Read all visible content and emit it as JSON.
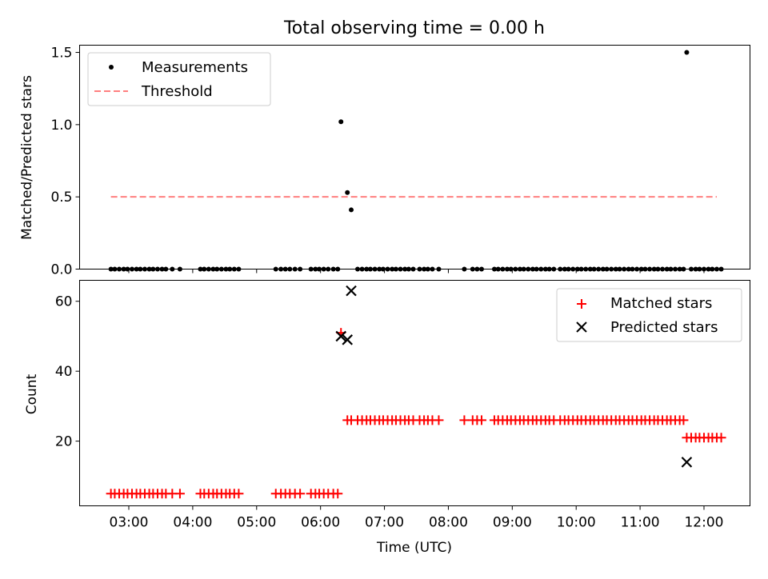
{
  "chart_data": {
    "title": "Total observing time = 0.00 h",
    "xlabel": "Time (UTC)",
    "x_ticks": [
      "03:00",
      "04:00",
      "05:00",
      "06:00",
      "07:00",
      "08:00",
      "09:00",
      "10:00",
      "11:00",
      "12:00"
    ],
    "x_tick_hours": [
      3,
      4,
      5,
      6,
      7,
      8,
      9,
      10,
      11,
      12
    ],
    "xlim": [
      2.23,
      12.72
    ],
    "panels": [
      {
        "type": "scatter",
        "ylabel": "Matched/Predicted stars",
        "ylim": [
          0,
          1.55
        ],
        "y_ticks": [
          "0.0",
          "0.5",
          "1.0",
          "1.5"
        ],
        "y_tick_values": [
          0,
          0.5,
          1.0,
          1.5
        ],
        "legend": "top-left",
        "series": [
          {
            "name": "Measurements",
            "marker": "dot",
            "color": "#000000",
            "points": [
              [
                2.72,
                0
              ],
              [
                2.78,
                0
              ],
              [
                2.85,
                0
              ],
              [
                2.92,
                0
              ],
              [
                2.98,
                0
              ],
              [
                3.05,
                0
              ],
              [
                3.12,
                0
              ],
              [
                3.18,
                0
              ],
              [
                3.25,
                0
              ],
              [
                3.32,
                0
              ],
              [
                3.38,
                0
              ],
              [
                3.45,
                0
              ],
              [
                3.52,
                0
              ],
              [
                3.58,
                0
              ],
              [
                3.68,
                0
              ],
              [
                3.8,
                0
              ],
              [
                4.12,
                0
              ],
              [
                4.18,
                0
              ],
              [
                4.25,
                0
              ],
              [
                4.32,
                0
              ],
              [
                4.38,
                0
              ],
              [
                4.45,
                0
              ],
              [
                4.52,
                0
              ],
              [
                4.58,
                0
              ],
              [
                4.65,
                0
              ],
              [
                4.72,
                0
              ],
              [
                5.3,
                0
              ],
              [
                5.38,
                0
              ],
              [
                5.45,
                0
              ],
              [
                5.52,
                0
              ],
              [
                5.6,
                0
              ],
              [
                5.68,
                0
              ],
              [
                5.85,
                0
              ],
              [
                5.92,
                0
              ],
              [
                5.98,
                0
              ],
              [
                6.05,
                0
              ],
              [
                6.12,
                0
              ],
              [
                6.2,
                0
              ],
              [
                6.27,
                0
              ],
              [
                6.32,
                1.02
              ],
              [
                6.42,
                0.53
              ],
              [
                6.48,
                0.41
              ],
              [
                6.58,
                0
              ],
              [
                6.65,
                0
              ],
              [
                6.72,
                0
              ],
              [
                6.78,
                0
              ],
              [
                6.85,
                0
              ],
              [
                6.92,
                0
              ],
              [
                6.98,
                0
              ],
              [
                7.05,
                0
              ],
              [
                7.12,
                0
              ],
              [
                7.18,
                0
              ],
              [
                7.25,
                0
              ],
              [
                7.32,
                0
              ],
              [
                7.38,
                0
              ],
              [
                7.45,
                0
              ],
              [
                7.55,
                0
              ],
              [
                7.62,
                0
              ],
              [
                7.68,
                0
              ],
              [
                7.75,
                0
              ],
              [
                7.85,
                0
              ],
              [
                8.25,
                0
              ],
              [
                8.38,
                0
              ],
              [
                8.45,
                0
              ],
              [
                8.52,
                0
              ],
              [
                8.72,
                0
              ],
              [
                8.78,
                0
              ],
              [
                8.85,
                0
              ],
              [
                8.92,
                0
              ],
              [
                8.98,
                0
              ],
              [
                9.05,
                0
              ],
              [
                9.12,
                0
              ],
              [
                9.18,
                0
              ],
              [
                9.25,
                0
              ],
              [
                9.32,
                0
              ],
              [
                9.38,
                0
              ],
              [
                9.45,
                0
              ],
              [
                9.52,
                0
              ],
              [
                9.58,
                0
              ],
              [
                9.65,
                0
              ],
              [
                9.75,
                0
              ],
              [
                9.82,
                0
              ],
              [
                9.88,
                0
              ],
              [
                9.95,
                0
              ],
              [
                10.02,
                0
              ],
              [
                10.08,
                0
              ],
              [
                10.15,
                0
              ],
              [
                10.22,
                0
              ],
              [
                10.28,
                0
              ],
              [
                10.35,
                0
              ],
              [
                10.42,
                0
              ],
              [
                10.48,
                0
              ],
              [
                10.55,
                0
              ],
              [
                10.62,
                0
              ],
              [
                10.68,
                0
              ],
              [
                10.75,
                0
              ],
              [
                10.82,
                0
              ],
              [
                10.88,
                0
              ],
              [
                10.95,
                0
              ],
              [
                11.02,
                0
              ],
              [
                11.08,
                0
              ],
              [
                11.15,
                0
              ],
              [
                11.22,
                0
              ],
              [
                11.28,
                0
              ],
              [
                11.35,
                0
              ],
              [
                11.42,
                0
              ],
              [
                11.48,
                0
              ],
              [
                11.55,
                0
              ],
              [
                11.62,
                0
              ],
              [
                11.68,
                0
              ],
              [
                11.73,
                1.5
              ],
              [
                11.8,
                0
              ],
              [
                11.87,
                0
              ],
              [
                11.93,
                0
              ],
              [
                12.0,
                0
              ],
              [
                12.07,
                0
              ],
              [
                12.13,
                0
              ],
              [
                12.2,
                0
              ],
              [
                12.27,
                0
              ]
            ]
          },
          {
            "name": "Threshold",
            "marker": "dashed-line",
            "color": "#ff7f7f",
            "points": [
              [
                2.72,
                0.5
              ],
              [
                12.2,
                0.5
              ]
            ]
          }
        ]
      },
      {
        "type": "scatter",
        "ylabel": "Count",
        "ylim": [
          1.5,
          66
        ],
        "y_ticks": [
          "20",
          "40",
          "60"
        ],
        "y_tick_values": [
          20,
          40,
          60
        ],
        "legend": "top-right",
        "series": [
          {
            "name": "Matched stars",
            "marker": "plus",
            "color": "#ff0000",
            "points": [
              [
                2.72,
                5
              ],
              [
                2.78,
                5
              ],
              [
                2.85,
                5
              ],
              [
                2.92,
                5
              ],
              [
                2.98,
                5
              ],
              [
                3.05,
                5
              ],
              [
                3.12,
                5
              ],
              [
                3.18,
                5
              ],
              [
                3.25,
                5
              ],
              [
                3.32,
                5
              ],
              [
                3.38,
                5
              ],
              [
                3.45,
                5
              ],
              [
                3.52,
                5
              ],
              [
                3.58,
                5
              ],
              [
                3.68,
                5
              ],
              [
                3.8,
                5
              ],
              [
                4.12,
                5
              ],
              [
                4.18,
                5
              ],
              [
                4.25,
                5
              ],
              [
                4.32,
                5
              ],
              [
                4.38,
                5
              ],
              [
                4.45,
                5
              ],
              [
                4.52,
                5
              ],
              [
                4.58,
                5
              ],
              [
                4.65,
                5
              ],
              [
                4.72,
                5
              ],
              [
                5.3,
                5
              ],
              [
                5.38,
                5
              ],
              [
                5.45,
                5
              ],
              [
                5.52,
                5
              ],
              [
                5.6,
                5
              ],
              [
                5.68,
                5
              ],
              [
                5.85,
                5
              ],
              [
                5.92,
                5
              ],
              [
                5.98,
                5
              ],
              [
                6.05,
                5
              ],
              [
                6.12,
                5
              ],
              [
                6.2,
                5
              ],
              [
                6.27,
                5
              ],
              [
                6.32,
                51
              ],
              [
                6.42,
                26
              ],
              [
                6.48,
                26
              ],
              [
                6.58,
                26
              ],
              [
                6.65,
                26
              ],
              [
                6.72,
                26
              ],
              [
                6.78,
                26
              ],
              [
                6.85,
                26
              ],
              [
                6.92,
                26
              ],
              [
                6.98,
                26
              ],
              [
                7.05,
                26
              ],
              [
                7.12,
                26
              ],
              [
                7.18,
                26
              ],
              [
                7.25,
                26
              ],
              [
                7.32,
                26
              ],
              [
                7.38,
                26
              ],
              [
                7.45,
                26
              ],
              [
                7.55,
                26
              ],
              [
                7.62,
                26
              ],
              [
                7.68,
                26
              ],
              [
                7.75,
                26
              ],
              [
                7.85,
                26
              ],
              [
                8.25,
                26
              ],
              [
                8.38,
                26
              ],
              [
                8.45,
                26
              ],
              [
                8.52,
                26
              ],
              [
                8.72,
                26
              ],
              [
                8.78,
                26
              ],
              [
                8.85,
                26
              ],
              [
                8.92,
                26
              ],
              [
                8.98,
                26
              ],
              [
                9.05,
                26
              ],
              [
                9.12,
                26
              ],
              [
                9.18,
                26
              ],
              [
                9.25,
                26
              ],
              [
                9.32,
                26
              ],
              [
                9.38,
                26
              ],
              [
                9.45,
                26
              ],
              [
                9.52,
                26
              ],
              [
                9.58,
                26
              ],
              [
                9.65,
                26
              ],
              [
                9.75,
                26
              ],
              [
                9.82,
                26
              ],
              [
                9.88,
                26
              ],
              [
                9.95,
                26
              ],
              [
                10.02,
                26
              ],
              [
                10.08,
                26
              ],
              [
                10.15,
                26
              ],
              [
                10.22,
                26
              ],
              [
                10.28,
                26
              ],
              [
                10.35,
                26
              ],
              [
                10.42,
                26
              ],
              [
                10.48,
                26
              ],
              [
                10.55,
                26
              ],
              [
                10.62,
                26
              ],
              [
                10.68,
                26
              ],
              [
                10.75,
                26
              ],
              [
                10.82,
                26
              ],
              [
                10.88,
                26
              ],
              [
                10.95,
                26
              ],
              [
                11.02,
                26
              ],
              [
                11.08,
                26
              ],
              [
                11.15,
                26
              ],
              [
                11.22,
                26
              ],
              [
                11.28,
                26
              ],
              [
                11.35,
                26
              ],
              [
                11.42,
                26
              ],
              [
                11.48,
                26
              ],
              [
                11.55,
                26
              ],
              [
                11.62,
                26
              ],
              [
                11.68,
                26
              ],
              [
                11.73,
                21
              ],
              [
                11.8,
                21
              ],
              [
                11.87,
                21
              ],
              [
                11.93,
                21
              ],
              [
                12.0,
                21
              ],
              [
                12.07,
                21
              ],
              [
                12.13,
                21
              ],
              [
                12.2,
                21
              ],
              [
                12.27,
                21
              ]
            ]
          },
          {
            "name": "Predicted stars",
            "marker": "x",
            "color": "#000000",
            "points": [
              [
                6.32,
                50
              ],
              [
                6.42,
                49
              ],
              [
                6.48,
                63
              ],
              [
                11.73,
                14
              ]
            ]
          }
        ]
      }
    ]
  }
}
